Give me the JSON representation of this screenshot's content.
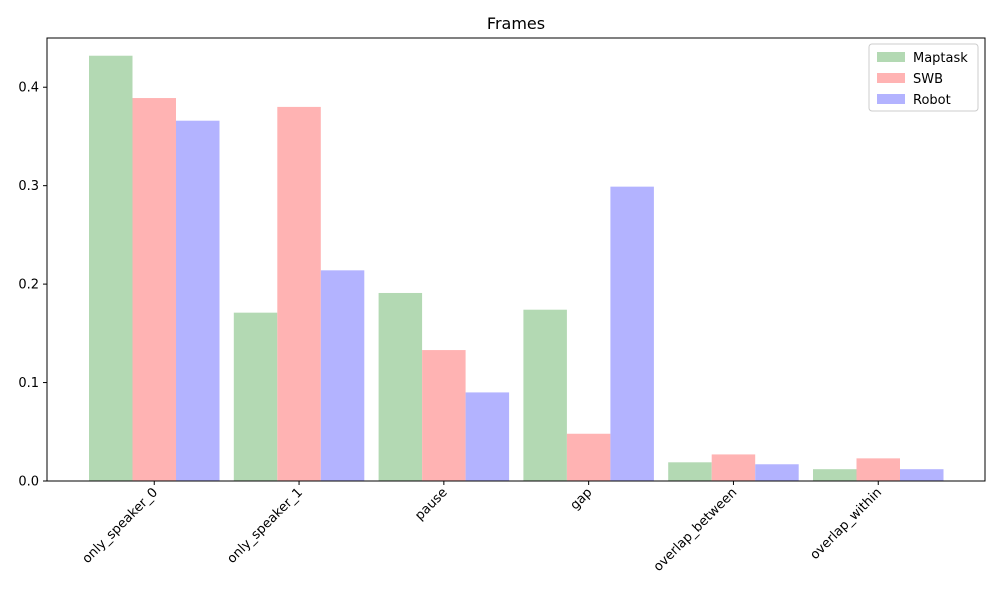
{
  "chart_data": {
    "type": "bar",
    "title": "Frames",
    "xlabel": "",
    "ylabel": "",
    "categories": [
      "only_speaker_0",
      "only_speaker_1",
      "pause",
      "gap",
      "overlap_between",
      "overlap_within"
    ],
    "series": [
      {
        "name": "Maptask",
        "color": "#b3d9b3",
        "values": [
          0.432,
          0.171,
          0.191,
          0.174,
          0.019,
          0.012
        ]
      },
      {
        "name": "SWB",
        "color": "#ffb3b3",
        "values": [
          0.389,
          0.38,
          0.133,
          0.048,
          0.027,
          0.023
        ]
      },
      {
        "name": "Robot",
        "color": "#b3b3ff",
        "values": [
          0.366,
          0.214,
          0.09,
          0.299,
          0.017,
          0.012
        ]
      }
    ],
    "ylim": [
      0,
      0.45
    ],
    "yticks": [
      "0.0",
      "0.1",
      "0.2",
      "0.3",
      "0.4"
    ],
    "grid": false,
    "legend_position": "top-right"
  }
}
